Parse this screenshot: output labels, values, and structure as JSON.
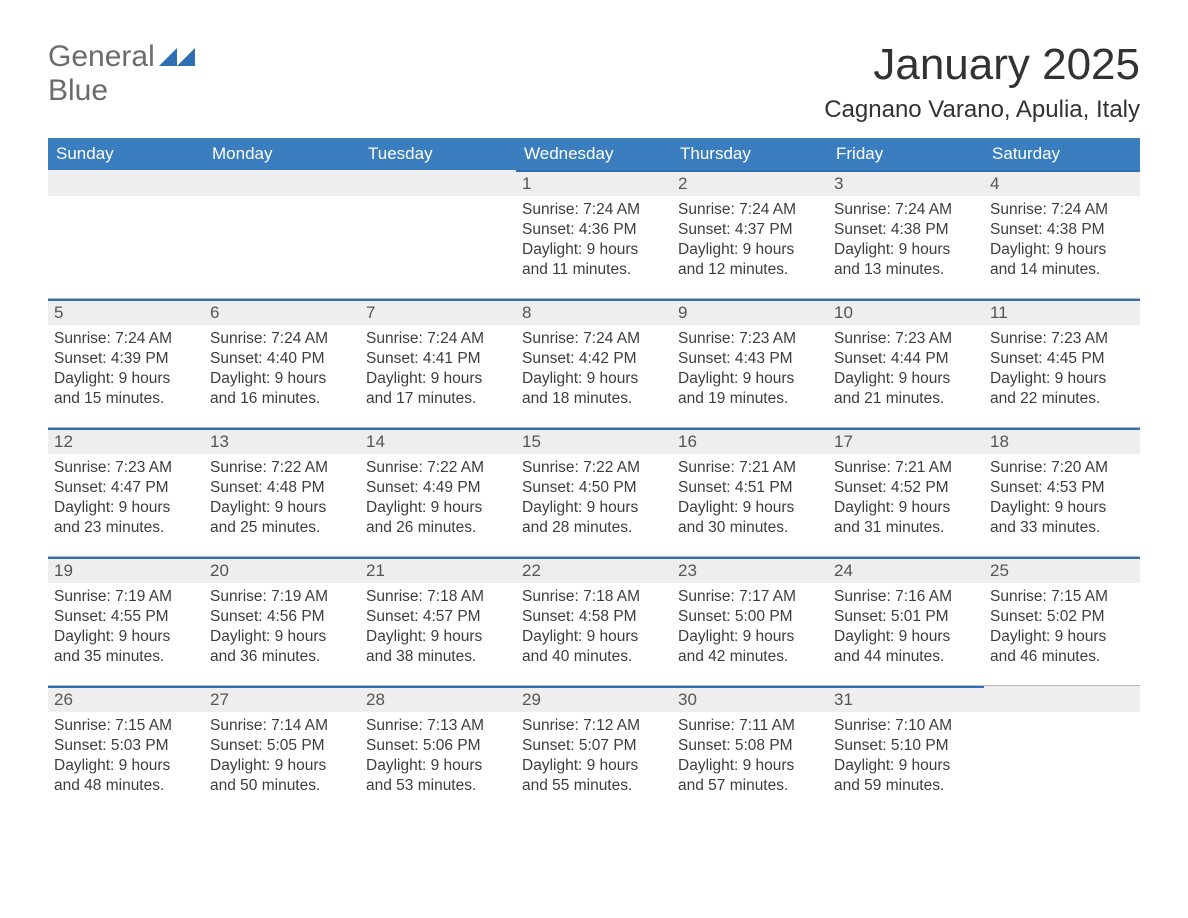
{
  "brand": {
    "word1": "General",
    "word2": "Blue"
  },
  "title": "January 2025",
  "location": "Cagnano Varano, Apulia, Italy",
  "colors": {
    "header_bg": "#3a7ebf",
    "accent_border": "#2d6fb2",
    "daynum_bg": "#eeeeee",
    "text": "#333333",
    "background": "#ffffff"
  },
  "labels": {
    "sunrise": "Sunrise:",
    "sunset": "Sunset:",
    "daylight": "Daylight:"
  },
  "days_of_week": [
    "Sunday",
    "Monday",
    "Tuesday",
    "Wednesday",
    "Thursday",
    "Friday",
    "Saturday"
  ],
  "weeks": [
    [
      null,
      null,
      null,
      {
        "n": "1",
        "sunrise": "7:24 AM",
        "sunset": "4:36 PM",
        "daylight": "9 hours and 11 minutes."
      },
      {
        "n": "2",
        "sunrise": "7:24 AM",
        "sunset": "4:37 PM",
        "daylight": "9 hours and 12 minutes."
      },
      {
        "n": "3",
        "sunrise": "7:24 AM",
        "sunset": "4:38 PM",
        "daylight": "9 hours and 13 minutes."
      },
      {
        "n": "4",
        "sunrise": "7:24 AM",
        "sunset": "4:38 PM",
        "daylight": "9 hours and 14 minutes."
      }
    ],
    [
      {
        "n": "5",
        "sunrise": "7:24 AM",
        "sunset": "4:39 PM",
        "daylight": "9 hours and 15 minutes."
      },
      {
        "n": "6",
        "sunrise": "7:24 AM",
        "sunset": "4:40 PM",
        "daylight": "9 hours and 16 minutes."
      },
      {
        "n": "7",
        "sunrise": "7:24 AM",
        "sunset": "4:41 PM",
        "daylight": "9 hours and 17 minutes."
      },
      {
        "n": "8",
        "sunrise": "7:24 AM",
        "sunset": "4:42 PM",
        "daylight": "9 hours and 18 minutes."
      },
      {
        "n": "9",
        "sunrise": "7:23 AM",
        "sunset": "4:43 PM",
        "daylight": "9 hours and 19 minutes."
      },
      {
        "n": "10",
        "sunrise": "7:23 AM",
        "sunset": "4:44 PM",
        "daylight": "9 hours and 21 minutes."
      },
      {
        "n": "11",
        "sunrise": "7:23 AM",
        "sunset": "4:45 PM",
        "daylight": "9 hours and 22 minutes."
      }
    ],
    [
      {
        "n": "12",
        "sunrise": "7:23 AM",
        "sunset": "4:47 PM",
        "daylight": "9 hours and 23 minutes."
      },
      {
        "n": "13",
        "sunrise": "7:22 AM",
        "sunset": "4:48 PM",
        "daylight": "9 hours and 25 minutes."
      },
      {
        "n": "14",
        "sunrise": "7:22 AM",
        "sunset": "4:49 PM",
        "daylight": "9 hours and 26 minutes."
      },
      {
        "n": "15",
        "sunrise": "7:22 AM",
        "sunset": "4:50 PM",
        "daylight": "9 hours and 28 minutes."
      },
      {
        "n": "16",
        "sunrise": "7:21 AM",
        "sunset": "4:51 PM",
        "daylight": "9 hours and 30 minutes."
      },
      {
        "n": "17",
        "sunrise": "7:21 AM",
        "sunset": "4:52 PM",
        "daylight": "9 hours and 31 minutes."
      },
      {
        "n": "18",
        "sunrise": "7:20 AM",
        "sunset": "4:53 PM",
        "daylight": "9 hours and 33 minutes."
      }
    ],
    [
      {
        "n": "19",
        "sunrise": "7:19 AM",
        "sunset": "4:55 PM",
        "daylight": "9 hours and 35 minutes."
      },
      {
        "n": "20",
        "sunrise": "7:19 AM",
        "sunset": "4:56 PM",
        "daylight": "9 hours and 36 minutes."
      },
      {
        "n": "21",
        "sunrise": "7:18 AM",
        "sunset": "4:57 PM",
        "daylight": "9 hours and 38 minutes."
      },
      {
        "n": "22",
        "sunrise": "7:18 AM",
        "sunset": "4:58 PM",
        "daylight": "9 hours and 40 minutes."
      },
      {
        "n": "23",
        "sunrise": "7:17 AM",
        "sunset": "5:00 PM",
        "daylight": "9 hours and 42 minutes."
      },
      {
        "n": "24",
        "sunrise": "7:16 AM",
        "sunset": "5:01 PM",
        "daylight": "9 hours and 44 minutes."
      },
      {
        "n": "25",
        "sunrise": "7:15 AM",
        "sunset": "5:02 PM",
        "daylight": "9 hours and 46 minutes."
      }
    ],
    [
      {
        "n": "26",
        "sunrise": "7:15 AM",
        "sunset": "5:03 PM",
        "daylight": "9 hours and 48 minutes."
      },
      {
        "n": "27",
        "sunrise": "7:14 AM",
        "sunset": "5:05 PM",
        "daylight": "9 hours and 50 minutes."
      },
      {
        "n": "28",
        "sunrise": "7:13 AM",
        "sunset": "5:06 PM",
        "daylight": "9 hours and 53 minutes."
      },
      {
        "n": "29",
        "sunrise": "7:12 AM",
        "sunset": "5:07 PM",
        "daylight": "9 hours and 55 minutes."
      },
      {
        "n": "30",
        "sunrise": "7:11 AM",
        "sunset": "5:08 PM",
        "daylight": "9 hours and 57 minutes."
      },
      {
        "n": "31",
        "sunrise": "7:10 AM",
        "sunset": "5:10 PM",
        "daylight": "9 hours and 59 minutes."
      },
      null
    ]
  ]
}
